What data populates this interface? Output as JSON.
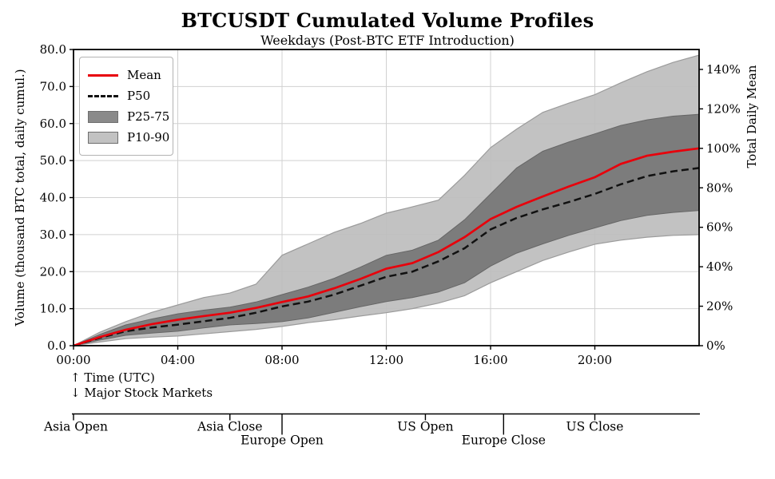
{
  "header": {
    "title": "BTCUSDT Cumulated Volume Profiles",
    "subtitle": "Weekdays (Post-BTC ETF Introduction)"
  },
  "legend": {
    "items": [
      {
        "label": "Mean",
        "swatch": "red-line"
      },
      {
        "label": "P50",
        "swatch": "black-dashed-line"
      },
      {
        "label": "P25-75",
        "swatch": "dark-gray-patch"
      },
      {
        "label": "P10-90",
        "swatch": "light-gray-patch"
      }
    ]
  },
  "axes": {
    "left": {
      "label": "Volume (thousand BTC total, daily cumul.)",
      "ticks": [
        "0.0",
        "10.0",
        "20.0",
        "30.0",
        "40.0",
        "50.0",
        "60.0",
        "70.0",
        "80.0"
      ]
    },
    "right": {
      "label": "Total Daily Mean",
      "ticks": [
        "0%",
        "20%",
        "40%",
        "60%",
        "80%",
        "100%",
        "120%",
        "140%"
      ]
    },
    "x": {
      "ticks": [
        "00:00",
        "04:00",
        "08:00",
        "12:00",
        "16:00",
        "20:00"
      ]
    }
  },
  "annotations": {
    "x_axis_note": "↑ Time (UTC)",
    "markets_note": "↓ Major Stock Markets"
  },
  "markets": {
    "items": [
      {
        "label": "Asia Open",
        "t": 0,
        "tier": 1
      },
      {
        "label": "Asia Close",
        "t": 6,
        "tier": 1
      },
      {
        "label": "Europe Open",
        "t": 8,
        "tier": 2
      },
      {
        "label": "US Open",
        "t": 13.5,
        "tier": 1
      },
      {
        "label": "Europe Close",
        "t": 16.5,
        "tier": 2
      },
      {
        "label": "US Close",
        "t": 20,
        "tier": 1
      }
    ]
  },
  "colors": {
    "mean_line": "#e8000b",
    "p50_line": "#111111",
    "band_dark": "#767676",
    "band_dark_edge": "#666666",
    "band_light": "#bdbdbd",
    "band_light_edge": "#9b9b9b",
    "grid": "#d0d0d0",
    "spine": "#000000"
  },
  "chart_data": {
    "type": "line",
    "title": "BTCUSDT Cumulated Volume Profiles",
    "subtitle": "Weekdays (Post-BTC ETF Introduction)",
    "xlabel": "Time (UTC)",
    "ylabel_left": "Volume (thousand BTC total, daily cumul.)",
    "ylabel_right": "Total Daily Mean",
    "ylim_left": [
      0,
      80
    ],
    "xlim_hours": [
      0,
      24
    ],
    "grid": true,
    "legend_position": "upper left",
    "x_hours": [
      0,
      1,
      2,
      3,
      4,
      5,
      6,
      7,
      8,
      9,
      10,
      11,
      12,
      13,
      14,
      15,
      16,
      17,
      18,
      19,
      20,
      21,
      22,
      23,
      24
    ],
    "series": [
      {
        "name": "Mean",
        "style": "solid-red",
        "values": [
          0,
          2.3,
          4.3,
          5.8,
          7.0,
          8.0,
          8.9,
          10.2,
          11.8,
          13.3,
          15.5,
          18.0,
          20.8,
          22.3,
          25.3,
          29.3,
          34.2,
          37.5,
          40.3,
          43.0,
          45.5,
          49.1,
          51.3,
          52.4,
          53.3
        ]
      },
      {
        "name": "P50",
        "style": "dashed-black",
        "values": [
          0,
          2.1,
          3.9,
          4.9,
          5.7,
          6.6,
          7.5,
          8.9,
          10.6,
          11.9,
          13.8,
          16.2,
          18.6,
          20.0,
          22.8,
          26.3,
          31.4,
          34.5,
          36.8,
          38.8,
          41.0,
          43.6,
          45.8,
          47.1,
          48.0
        ]
      },
      {
        "name": "P25-75",
        "style": "band-dark",
        "lower": [
          0,
          1.5,
          2.8,
          3.4,
          3.9,
          4.8,
          5.6,
          6.0,
          6.5,
          7.5,
          9.0,
          10.5,
          11.9,
          13.0,
          14.5,
          17.0,
          21.5,
          25.0,
          27.5,
          29.8,
          31.8,
          33.8,
          35.2,
          36.0,
          36.5
        ],
        "upper": [
          0,
          3.0,
          5.6,
          7.2,
          8.6,
          9.6,
          10.4,
          11.8,
          13.8,
          15.8,
          18.2,
          21.2,
          24.4,
          25.8,
          28.5,
          34.0,
          41.0,
          48.0,
          52.5,
          55.0,
          57.2,
          59.5,
          61.0,
          62.0,
          62.5
        ]
      },
      {
        "name": "P10-90",
        "style": "band-light",
        "lower": [
          0,
          1.0,
          1.9,
          2.3,
          2.6,
          3.2,
          3.8,
          4.4,
          5.2,
          6.2,
          7.0,
          8.0,
          8.9,
          10.0,
          11.5,
          13.5,
          17.0,
          20.0,
          23.0,
          25.3,
          27.4,
          28.5,
          29.3,
          29.8,
          30.0
        ],
        "upper": [
          0,
          3.6,
          6.5,
          9.0,
          11.0,
          13.0,
          14.2,
          16.6,
          24.4,
          27.5,
          30.6,
          33.0,
          35.8,
          37.5,
          39.3,
          46.0,
          53.5,
          58.5,
          63.0,
          65.5,
          67.8,
          71.0,
          74.0,
          76.5,
          78.5
        ]
      }
    ],
    "right_axis": {
      "mean_total_k_btc": 53.3,
      "ticks_pct": [
        0,
        20,
        40,
        60,
        80,
        100,
        120,
        140
      ]
    }
  }
}
